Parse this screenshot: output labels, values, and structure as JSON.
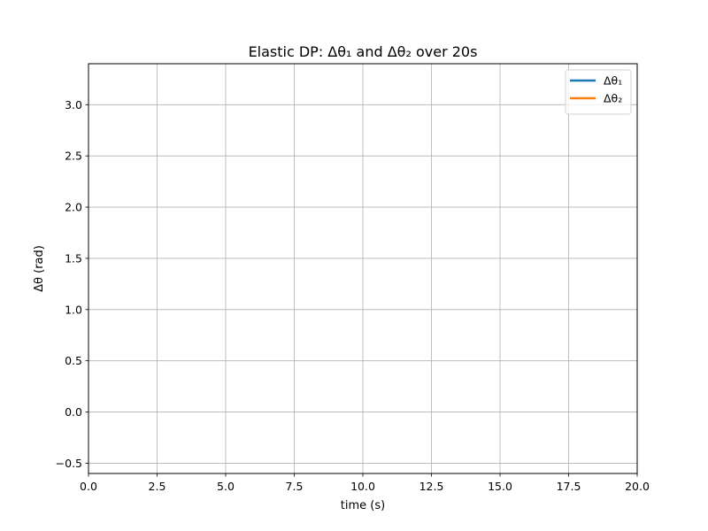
{
  "chart_data": {
    "type": "line",
    "title": "Elastic DP: Δθ₁ and Δθ₂ over 20s",
    "xlabel": "time (s)",
    "ylabel": "Δθ (rad)",
    "xlim": [
      0,
      20
    ],
    "ylim": [
      -0.6,
      3.4
    ],
    "xticks": [
      0,
      2.5,
      5,
      7.5,
      10,
      12.5,
      15,
      17.5,
      20
    ],
    "xtick_labels": [
      "0.0",
      "2.5",
      "5.0",
      "7.5",
      "10.0",
      "12.5",
      "15.0",
      "17.5",
      "20.0"
    ],
    "yticks": [
      -0.5,
      0,
      0.5,
      1,
      1.5,
      2,
      2.5,
      3
    ],
    "ytick_labels": [
      "−0.5",
      "0.0",
      "0.5",
      "1.0",
      "1.5",
      "2.0",
      "2.5",
      "3.0"
    ],
    "grid": true,
    "legend_position": "top-right",
    "series": [
      {
        "name": "Δθ₁",
        "color": "#1f77b4",
        "x": [],
        "y": []
      },
      {
        "name": "Δθ₂",
        "color": "#ff7f0e",
        "x": [],
        "y": []
      }
    ]
  }
}
